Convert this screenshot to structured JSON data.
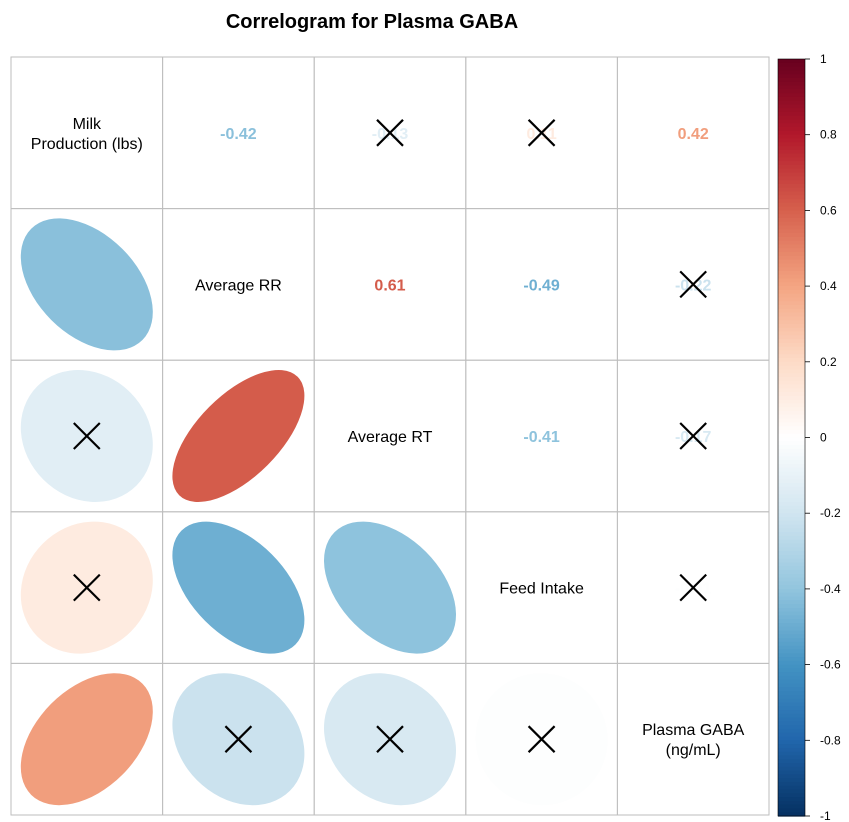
{
  "chart_data": {
    "type": "heatmap",
    "title": "Correlogram for Plasma GABA",
    "variables": [
      [
        "Milk",
        "Production (lbs)"
      ],
      [
        "Average RR"
      ],
      [
        "Average RT"
      ],
      [
        "Feed Intake"
      ],
      [
        "Plasma GABA",
        "(ng/mL)"
      ]
    ],
    "matrix": [
      [
        1,
        -0.42,
        -0.13,
        0.11,
        0.42
      ],
      [
        -0.42,
        1,
        0.61,
        -0.49,
        -0.22
      ],
      [
        -0.13,
        0.61,
        1,
        -0.41,
        -0.17
      ],
      [
        0.11,
        -0.49,
        -0.41,
        1,
        -0.01
      ],
      [
        0.42,
        -0.22,
        -0.17,
        -0.01,
        1
      ]
    ],
    "crossed_pairs": [
      [
        0,
        2
      ],
      [
        0,
        3
      ],
      [
        1,
        4
      ],
      [
        2,
        4
      ],
      [
        3,
        4
      ]
    ],
    "upper": "number",
    "lower": "ellipse",
    "colorbar": {
      "ticks": [
        "1",
        "0.8",
        "0.6",
        "0.4",
        "0.2",
        "0",
        "-0.2",
        "-0.4",
        "-0.6",
        "-0.8",
        "-1"
      ],
      "range": [
        -1,
        1
      ],
      "colors": [
        "#67001F",
        "#B2182B",
        "#D6604D",
        "#F4A582",
        "#FDDBC7",
        "#FFFFFF",
        "#D1E5F0",
        "#92C5DE",
        "#4393C3",
        "#2166AC",
        "#053061"
      ]
    },
    "grid": true
  }
}
